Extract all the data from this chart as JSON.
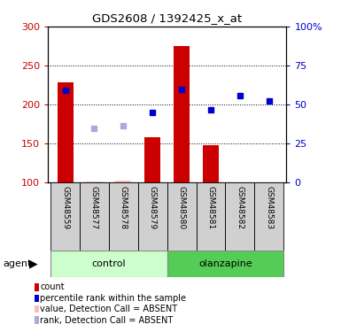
{
  "title": "GDS2608 / 1392425_x_at",
  "samples": [
    "GSM48559",
    "GSM48577",
    "GSM48578",
    "GSM48579",
    "GSM48580",
    "GSM48581",
    "GSM48582",
    "GSM48583"
  ],
  "bar_values": [
    228,
    null,
    null,
    158,
    275,
    148,
    null,
    null
  ],
  "bar_color": "#cc0000",
  "absent_bar_values": [
    null,
    101,
    102,
    null,
    null,
    null,
    null,
    null
  ],
  "absent_bar_color": "#ffbbbb",
  "rank_values": [
    218,
    null,
    null,
    190,
    220,
    193,
    212,
    205
  ],
  "rank_color": "#0000cc",
  "absent_rank_values": [
    null,
    170,
    173,
    null,
    null,
    null,
    null,
    null
  ],
  "absent_rank_color": "#aaaadd",
  "ylim_left": [
    100,
    300
  ],
  "ylim_right": [
    0,
    100
  ],
  "yticks_left": [
    100,
    150,
    200,
    250,
    300
  ],
  "yticks_right": [
    0,
    25,
    50,
    75,
    100
  ],
  "ytick_labels_right": [
    "0",
    "25",
    "50",
    "75",
    "100%"
  ],
  "control_color": "#ccffcc",
  "olanzapine_color": "#55cc55",
  "bar_width": 0.55
}
